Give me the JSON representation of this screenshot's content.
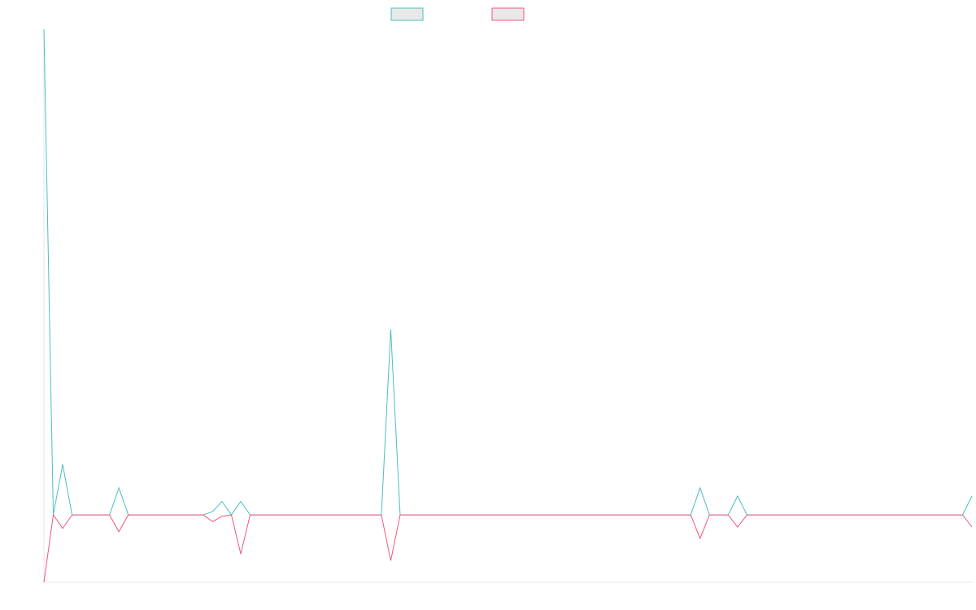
{
  "chart_data": {
    "type": "line",
    "title": "",
    "xlabel": "",
    "ylabel": "",
    "grid": false,
    "legend_position": "top-center",
    "x_count": 100,
    "ylim": [
      -1.0,
      7.2
    ],
    "series": [
      {
        "color": "#4bbfc0",
        "values": [
          7.2,
          0,
          0.75,
          0,
          0,
          0,
          0,
          0,
          0.4,
          0,
          0,
          0,
          0,
          0,
          0,
          0,
          0,
          0,
          0.05,
          0.2,
          0,
          0.2,
          0,
          0,
          0,
          0,
          0,
          0,
          0,
          0,
          0,
          0,
          0,
          0,
          0,
          0,
          0,
          2.75,
          0,
          0,
          0,
          0,
          0,
          0,
          0,
          0,
          0,
          0,
          0,
          0,
          0,
          0,
          0,
          0,
          0,
          0,
          0,
          0,
          0,
          0,
          0,
          0,
          0,
          0,
          0,
          0,
          0,
          0,
          0,
          0,
          0.4,
          0,
          0,
          0,
          0.28,
          0,
          0,
          0,
          0,
          0,
          0,
          0,
          0,
          0,
          0,
          0,
          0,
          0,
          0,
          0,
          0,
          0,
          0,
          0,
          0,
          0,
          0,
          0,
          0,
          0.28
        ]
      },
      {
        "color": "#f0587a",
        "values": [
          -1.0,
          0,
          -0.2,
          0,
          0,
          0,
          0,
          0,
          -0.25,
          0,
          0,
          0,
          0,
          0,
          0,
          0,
          0,
          0,
          -0.1,
          -0.02,
          0,
          -0.58,
          0,
          0,
          0,
          0,
          0,
          0,
          0,
          0,
          0,
          0,
          0,
          0,
          0,
          0,
          0,
          -0.68,
          0,
          0,
          0,
          0,
          0,
          0,
          0,
          0,
          0,
          0,
          0,
          0,
          0,
          0,
          0,
          0,
          0,
          0,
          0,
          0,
          0,
          0,
          0,
          0,
          0,
          0,
          0,
          0,
          0,
          0,
          0,
          0,
          -0.35,
          0,
          0,
          0,
          -0.18,
          0,
          0,
          0,
          0,
          0,
          0,
          0,
          0,
          0,
          0,
          0,
          0,
          0,
          0,
          0,
          0,
          0,
          0,
          0,
          0,
          0,
          0,
          0,
          0,
          -0.18
        ]
      }
    ]
  }
}
